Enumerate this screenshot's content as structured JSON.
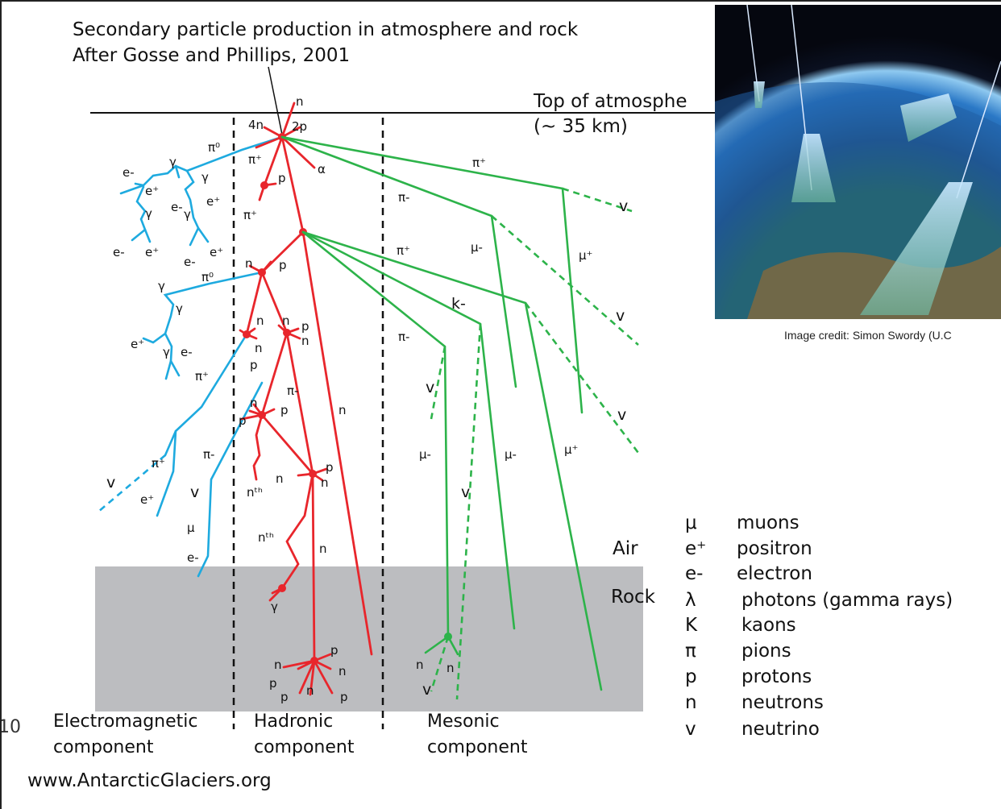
{
  "title_lines": [
    "Secondary particle production in atmosphere and rock",
    "After Gosse and Phillips, 2001"
  ],
  "top_label": [
    "Top of atmosphe",
    "(~ 35 km)"
  ],
  "air_label": "Air",
  "rock_label": "Rock",
  "components": {
    "em": [
      "Electromagnetic",
      "component"
    ],
    "hadronic": [
      "Hadronic",
      "component"
    ],
    "mesonic": [
      "Mesonic",
      "component"
    ]
  },
  "photo_credit": "Image credit: Simon Swordy (U.C",
  "website": "www.AntarcticGlaciers.org",
  "edge_fragment": "10",
  "legend": [
    {
      "symbol": "μ",
      "name": "muons"
    },
    {
      "symbol": "e⁺",
      "name": "positron"
    },
    {
      "symbol": "e-",
      "name": "electron"
    },
    {
      "symbol": "λ",
      "name": "photons (gamma rays)"
    },
    {
      "symbol": "K",
      "name": "kaons"
    },
    {
      "symbol": "π",
      "name": "pions"
    },
    {
      "symbol": "p",
      "name": "protons"
    },
    {
      "symbol": "n",
      "name": "neutrons"
    },
    {
      "symbol": "v",
      "name": "neutrino"
    }
  ],
  "colors": {
    "electromagnetic": "#1eaadf",
    "hadronic": "#e8262c",
    "mesonic": "#2db34a",
    "rock": "#bcbdc0"
  },
  "particle_labels": {
    "n": "n",
    "p": "p",
    "four_n": "4n",
    "two_p": "2p",
    "alpha": "α",
    "gamma": "γ",
    "pi0": "π⁰",
    "pi_plus": "π⁺",
    "pi_minus": "π-",
    "mu_plus": "μ⁺",
    "mu_minus": "μ-",
    "e_plus": "e⁺",
    "e_minus": "e-",
    "nu": "v",
    "kaon": "k-",
    "n_th": "nᵗʰ",
    "mu": "μ"
  }
}
